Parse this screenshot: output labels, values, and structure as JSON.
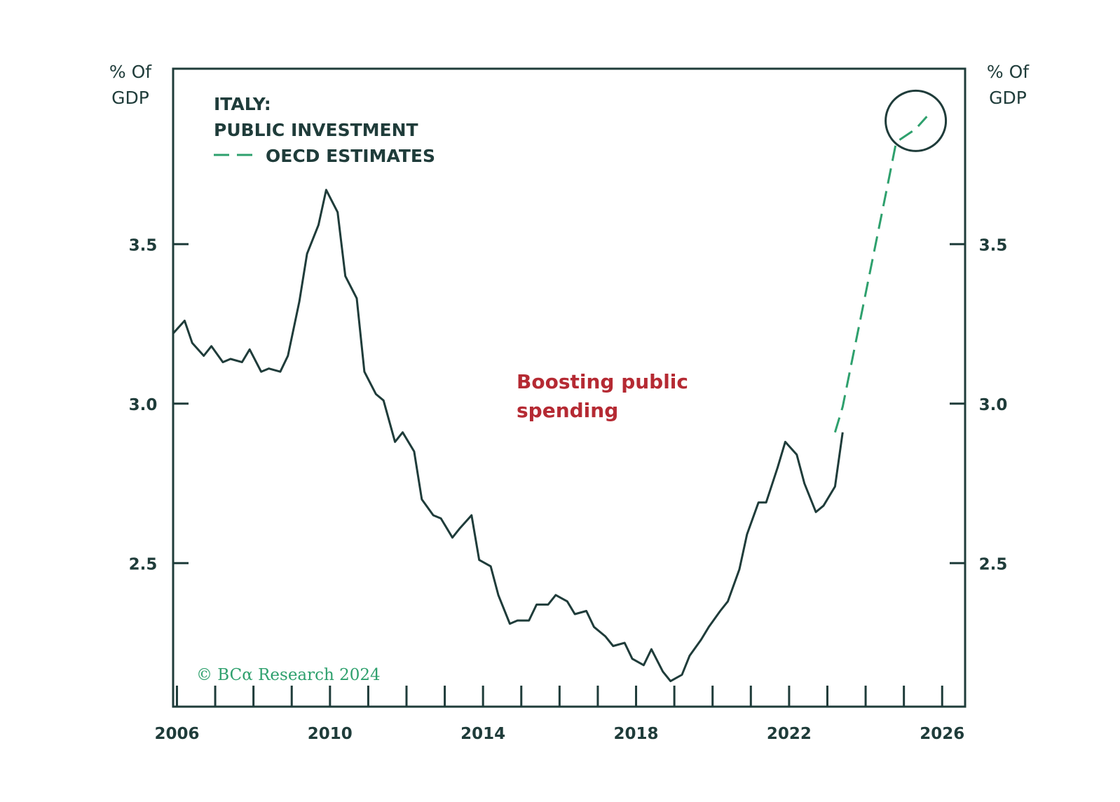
{
  "colors": {
    "axis": "#1f3c3a",
    "series_actual": "#1f3c3a",
    "series_estimate": "#2ea06d",
    "annotation": "#b52a33",
    "credit": "#2ea06d",
    "highlight_circle": "#1f3c3a"
  },
  "chart_data": {
    "type": "line",
    "title_lines": [
      "ITALY:",
      "PUBLIC INVESTMENT"
    ],
    "legend": [
      {
        "name": "OECD ESTIMATES",
        "style": "dashed"
      }
    ],
    "ylabel_left": [
      "% Of",
      "GDP"
    ],
    "ylabel_right": [
      "% Of",
      "GDP"
    ],
    "xlim": [
      2005.9,
      2026.6
    ],
    "ylim": [
      2.05,
      4.05
    ],
    "xticks": [
      2006,
      2010,
      2014,
      2018,
      2022,
      2026
    ],
    "yticks": [
      2.5,
      3.0,
      3.5
    ],
    "ytick_labels": [
      "2.5",
      "3.0",
      "3.5"
    ],
    "series": [
      {
        "name": "Public investment",
        "style": "solid",
        "x": [
          2005.9,
          2006.2,
          2006.4,
          2006.7,
          2006.9,
          2007.2,
          2007.4,
          2007.7,
          2007.9,
          2008.2,
          2008.4,
          2008.7,
          2008.9,
          2009.2,
          2009.4,
          2009.7,
          2009.9,
          2010.2,
          2010.4,
          2010.7,
          2010.9,
          2011.2,
          2011.4,
          2011.7,
          2011.9,
          2012.2,
          2012.4,
          2012.7,
          2012.9,
          2013.2,
          2013.4,
          2013.7,
          2013.9,
          2014.2,
          2014.4,
          2014.7,
          2014.9,
          2015.2,
          2015.4,
          2015.7,
          2015.9,
          2016.2,
          2016.4,
          2016.7,
          2016.9,
          2017.2,
          2017.4,
          2017.7,
          2017.9,
          2018.2,
          2018.4,
          2018.7,
          2018.9,
          2019.2,
          2019.4,
          2019.7,
          2019.9,
          2020.2,
          2020.4,
          2020.7,
          2020.9,
          2021.2,
          2021.4,
          2021.7,
          2021.9,
          2022.2,
          2022.4,
          2022.7,
          2022.9,
          2023.2,
          2023.4
        ],
        "values": [
          3.22,
          3.26,
          3.19,
          3.15,
          3.18,
          3.13,
          3.14,
          3.13,
          3.17,
          3.1,
          3.11,
          3.1,
          3.15,
          3.32,
          3.47,
          3.56,
          3.67,
          3.6,
          3.4,
          3.33,
          3.1,
          3.03,
          3.01,
          2.88,
          2.91,
          2.85,
          2.7,
          2.65,
          2.64,
          2.58,
          2.61,
          2.65,
          2.51,
          2.49,
          2.4,
          2.31,
          2.32,
          2.32,
          2.37,
          2.37,
          2.4,
          2.38,
          2.34,
          2.35,
          2.3,
          2.27,
          2.24,
          2.25,
          2.2,
          2.18,
          2.23,
          2.16,
          2.13,
          2.15,
          2.21,
          2.26,
          2.3,
          2.35,
          2.38,
          2.48,
          2.59,
          2.69,
          2.69,
          2.8,
          2.88,
          2.84,
          2.75,
          2.66,
          2.68,
          2.74,
          2.91
        ]
      },
      {
        "name": "OECD ESTIMATES",
        "style": "dashed",
        "x": [
          2023.2,
          2023.4,
          2024.6,
          2024.8,
          2025.3,
          2025.6
        ],
        "values": [
          2.91,
          2.99,
          3.7,
          3.82,
          3.86,
          3.9
        ]
      }
    ],
    "annotation": {
      "lines": [
        "Boosting public",
        "spending"
      ]
    },
    "credit": "© BCα Research 2024"
  }
}
